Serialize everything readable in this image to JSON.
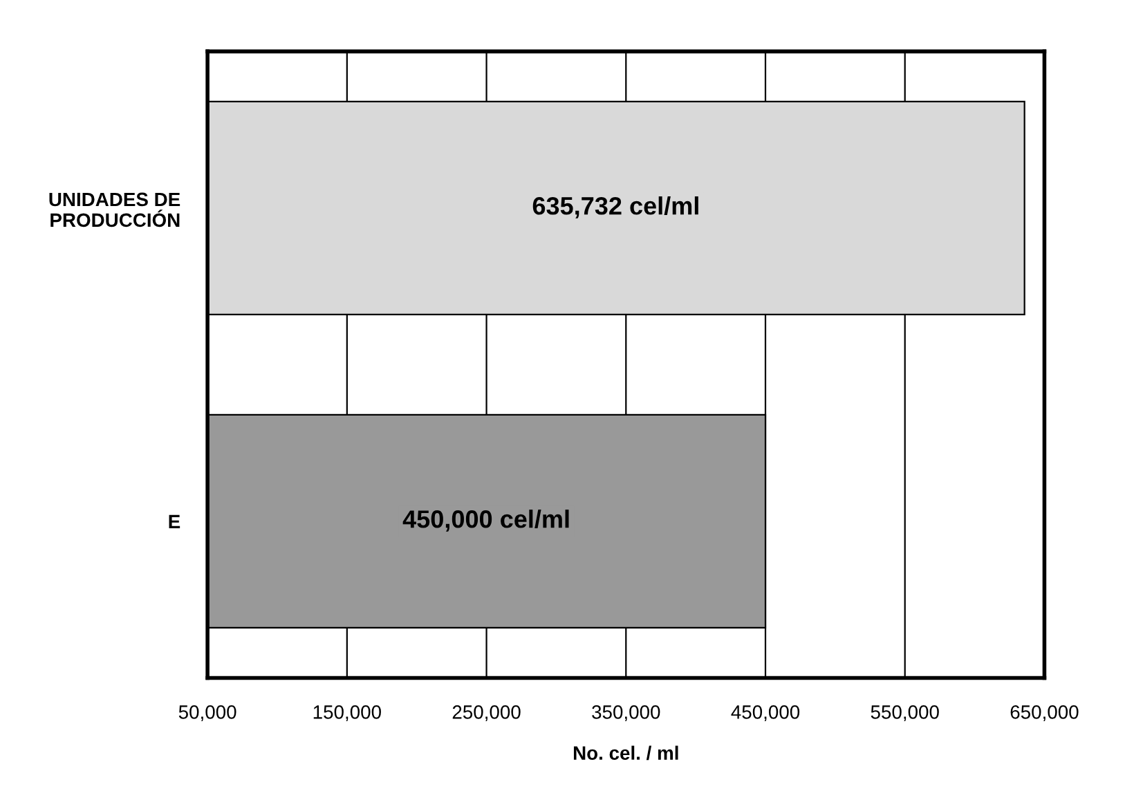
{
  "chart_data": {
    "type": "bar",
    "orientation": "horizontal",
    "categories": [
      "UNIDADES DE\nPRODUCCIÓN",
      "E"
    ],
    "values": [
      635732,
      450000
    ],
    "colors": [
      "#d9d9d9",
      "#999999"
    ],
    "value_labels": [
      "635,732 cel/ml",
      "450,000 cel/ml"
    ],
    "xlabel": "No. cel. / ml",
    "xlim": [
      50000,
      650000
    ],
    "xticks": [
      {
        "value": 50000,
        "label": "50,000"
      },
      {
        "value": 150000,
        "label": "150,000"
      },
      {
        "value": 250000,
        "label": "250,000"
      },
      {
        "value": 350000,
        "label": "350,000"
      },
      {
        "value": 450000,
        "label": "450,000"
      },
      {
        "value": 550000,
        "label": "550,000"
      },
      {
        "value": 650000,
        "label": "650,000"
      }
    ],
    "grid": "x"
  }
}
